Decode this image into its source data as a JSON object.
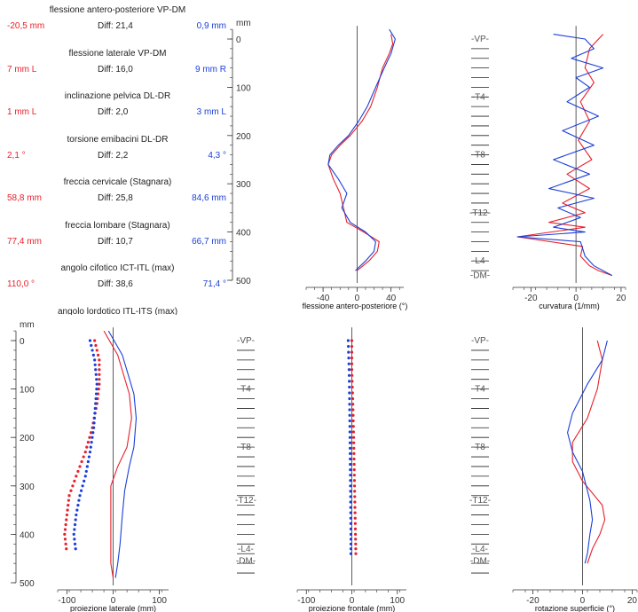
{
  "stats": [
    {
      "title": "flessione antero-posteriore VP-DM",
      "left": "-20,5 mm",
      "diff": "Diff: 21,4",
      "right": "0,9 mm"
    },
    {
      "title": "flessione laterale VP-DM",
      "left": "7 mm  L",
      "diff": "Diff: 16,0",
      "right": "9 mm  R"
    },
    {
      "title": "inclinazione pelvica DL-DR",
      "left": "1 mm  L",
      "diff": "Diff: 2,0",
      "right": "3 mm  L"
    },
    {
      "title": "torsione emibacini DL-DR",
      "left": "2,1 °",
      "diff": "Diff: 2,2",
      "right": "4,3 °"
    },
    {
      "title": "freccia cervicale (Stagnara)",
      "left": "58,8 mm",
      "diff": "Diff: 25,8",
      "right": "84,6 mm"
    },
    {
      "title": "freccia lombare (Stagnara)",
      "left": "77,4 mm",
      "diff": "Diff: 10,7",
      "right": "66,7 mm"
    },
    {
      "title": "angolo cifotico ICT-ITL (max)",
      "left": "110,0 °",
      "diff": "Diff: 38,6",
      "right": "71,4 °"
    },
    {
      "title": "angolo lordotico ITL-ITS (max)",
      "left": "",
      "diff": "",
      "right": ""
    }
  ],
  "colors": {
    "red": "#e8202a",
    "blue": "#1a3fd8",
    "axis": "#333333",
    "grid": "#222222",
    "labels": "#555555"
  },
  "chart_data": [
    {
      "type": "line",
      "xlabel": "flessione antero-posteriore (°)",
      "ylabel": "mm",
      "xlim": [
        -60,
        55
      ],
      "ylim": [
        -20,
        500
      ],
      "xticks": [
        -40,
        0,
        40
      ],
      "yticks": [
        0,
        100,
        200,
        300,
        400,
        500
      ],
      "y_tick_labels": true,
      "series": [
        {
          "color": "red",
          "points": [
            [
              40,
              -10
            ],
            [
              42,
              10
            ],
            [
              38,
              30
            ],
            [
              30,
              60
            ],
            [
              24,
              100
            ],
            [
              16,
              140
            ],
            [
              6,
              170
            ],
            [
              -8,
              200
            ],
            [
              -20,
              220
            ],
            [
              -30,
              240
            ],
            [
              -34,
              260
            ],
            [
              -28,
              290
            ],
            [
              -20,
              320
            ],
            [
              -16,
              350
            ],
            [
              -12,
              380
            ],
            [
              8,
              400
            ],
            [
              26,
              420
            ],
            [
              24,
              440
            ],
            [
              14,
              460
            ],
            [
              0,
              480
            ]
          ]
        },
        {
          "color": "blue",
          "points": [
            [
              38,
              -20
            ],
            [
              45,
              0
            ],
            [
              40,
              30
            ],
            [
              32,
              60
            ],
            [
              22,
              100
            ],
            [
              12,
              140
            ],
            [
              2,
              170
            ],
            [
              -10,
              200
            ],
            [
              -22,
              220
            ],
            [
              -32,
              240
            ],
            [
              -34,
              260
            ],
            [
              -22,
              290
            ],
            [
              -12,
              320
            ],
            [
              -18,
              350
            ],
            [
              -8,
              380
            ],
            [
              10,
              400
            ],
            [
              22,
              420
            ],
            [
              20,
              440
            ],
            [
              10,
              460
            ],
            [
              -2,
              480
            ]
          ]
        }
      ]
    },
    {
      "type": "line",
      "xlabel": "curvatura (1/mm)",
      "xlim": [
        -28,
        22
      ],
      "ylim": [
        -20,
        500
      ],
      "xticks": [
        -20,
        0,
        20
      ],
      "yticks": [],
      "y_tick_labels": false,
      "vertebra_labels": [
        {
          "y": 0,
          "label": "-VP-"
        },
        {
          "y": 120,
          "label": "-T4-"
        },
        {
          "y": 240,
          "label": "-T8-"
        },
        {
          "y": 360,
          "label": "-T12-"
        },
        {
          "y": 460,
          "label": "-L4-"
        },
        {
          "y": 490,
          "label": "-DM-"
        }
      ],
      "series": [
        {
          "color": "red",
          "points": [
            [
              12,
              -10
            ],
            [
              6,
              20
            ],
            [
              4,
              60
            ],
            [
              8,
              90
            ],
            [
              2,
              130
            ],
            [
              6,
              170
            ],
            [
              1,
              210
            ],
            [
              7,
              250
            ],
            [
              -4,
              280
            ],
            [
              6,
              310
            ],
            [
              -6,
              340
            ],
            [
              4,
              360
            ],
            [
              -12,
              380
            ],
            [
              4,
              390
            ],
            [
              -26,
              410
            ],
            [
              3,
              430
            ],
            [
              2,
              450
            ],
            [
              6,
              470
            ],
            [
              10,
              480
            ],
            [
              16,
              490
            ]
          ]
        },
        {
          "color": "blue",
          "points": [
            [
              -10,
              -10
            ],
            [
              4,
              0
            ],
            [
              8,
              20
            ],
            [
              -2,
              40
            ],
            [
              12,
              60
            ],
            [
              0,
              80
            ],
            [
              6,
              100
            ],
            [
              -4,
              130
            ],
            [
              10,
              160
            ],
            [
              -6,
              190
            ],
            [
              8,
              220
            ],
            [
              -10,
              250
            ],
            [
              6,
              280
            ],
            [
              -12,
              310
            ],
            [
              8,
              330
            ],
            [
              -8,
              350
            ],
            [
              2,
              370
            ],
            [
              -10,
              390
            ],
            [
              4,
              400
            ],
            [
              -26,
              410
            ],
            [
              2,
              420
            ],
            [
              4,
              450
            ],
            [
              8,
              470
            ],
            [
              16,
              490
            ]
          ]
        }
      ]
    },
    {
      "type": "line",
      "xlabel": "proiezione laterale (mm)",
      "ylabel": "mm",
      "xlim": [
        -120,
        120
      ],
      "ylim": [
        -20,
        500
      ],
      "xticks": [
        -100,
        0,
        100
      ],
      "yticks": [
        0,
        100,
        200,
        300,
        400,
        500
      ],
      "y_tick_labels": true,
      "series": [
        {
          "color": "red",
          "points": [
            [
              -20,
              -20
            ],
            [
              10,
              30
            ],
            [
              35,
              110
            ],
            [
              40,
              160
            ],
            [
              30,
              220
            ],
            [
              10,
              260
            ],
            [
              -5,
              300
            ],
            [
              -5,
              360
            ],
            [
              -5,
              420
            ],
            [
              -5,
              460
            ],
            [
              0,
              490
            ]
          ]
        },
        {
          "color": "blue",
          "points": [
            [
              -10,
              -20
            ],
            [
              20,
              30
            ],
            [
              45,
              110
            ],
            [
              50,
              160
            ],
            [
              45,
              220
            ],
            [
              35,
              260
            ],
            [
              25,
              310
            ],
            [
              20,
              360
            ],
            [
              15,
              420
            ],
            [
              10,
              460
            ],
            [
              5,
              490
            ]
          ]
        },
        {
          "color": "red",
          "dotted": true,
          "points": [
            [
              -40,
              0
            ],
            [
              -30,
              40
            ],
            [
              -30,
              90
            ],
            [
              -35,
              130
            ],
            [
              -45,
              180
            ],
            [
              -60,
              230
            ],
            [
              -80,
              280
            ],
            [
              -95,
              320
            ],
            [
              -100,
              360
            ],
            [
              -105,
              400
            ],
            [
              -100,
              440
            ]
          ]
        },
        {
          "color": "blue",
          "dotted": true,
          "points": [
            [
              -50,
              0
            ],
            [
              -40,
              40
            ],
            [
              -35,
              90
            ],
            [
              -38,
              130
            ],
            [
              -42,
              180
            ],
            [
              -50,
              230
            ],
            [
              -60,
              280
            ],
            [
              -72,
              320
            ],
            [
              -80,
              360
            ],
            [
              -85,
              400
            ],
            [
              -80,
              440
            ]
          ]
        }
      ]
    },
    {
      "type": "line",
      "xlabel": "proiezione frontale (mm)",
      "xlim": [
        -120,
        120
      ],
      "ylim": [
        -20,
        500
      ],
      "xticks": [
        -100,
        0,
        100
      ],
      "yticks": [],
      "y_tick_labels": false,
      "vertebra_labels": [
        {
          "y": 0,
          "label": "-VP-"
        },
        {
          "y": 100,
          "label": "-T4-"
        },
        {
          "y": 220,
          "label": "-T8-"
        },
        {
          "y": 330,
          "label": "-T12-"
        },
        {
          "y": 430,
          "label": "-L4-"
        },
        {
          "y": 455,
          "label": "-DM-"
        }
      ],
      "series": [
        {
          "color": "red",
          "dotted": true,
          "points": [
            [
              0,
              0
            ],
            [
              0,
              60
            ],
            [
              2,
              120
            ],
            [
              4,
              200
            ],
            [
              6,
              300
            ],
            [
              8,
              400
            ],
            [
              9,
              450
            ]
          ]
        },
        {
          "color": "blue",
          "dotted": true,
          "points": [
            [
              -8,
              0
            ],
            [
              -6,
              60
            ],
            [
              -5,
              120
            ],
            [
              -4,
              200
            ],
            [
              -3,
              300
            ],
            [
              -2,
              400
            ],
            [
              -2,
              450
            ]
          ]
        }
      ]
    },
    {
      "type": "line",
      "xlabel": "rotazione superficie (°)",
      "xlim": [
        -28,
        22
      ],
      "ylim": [
        -20,
        500
      ],
      "xticks": [
        -20,
        0,
        20
      ],
      "yticks": [],
      "y_tick_labels": false,
      "vertebra_labels": [
        {
          "y": 0,
          "label": "-VP-"
        },
        {
          "y": 100,
          "label": "-T4-"
        },
        {
          "y": 220,
          "label": "-T8-"
        },
        {
          "y": 330,
          "label": "-T12-"
        },
        {
          "y": 430,
          "label": "-L4-"
        },
        {
          "y": 455,
          "label": "-DM-"
        }
      ],
      "series": [
        {
          "color": "red",
          "points": [
            [
              6,
              0
            ],
            [
              8,
              40
            ],
            [
              6,
              100
            ],
            [
              2,
              160
            ],
            [
              -4,
              210
            ],
            [
              -4,
              250
            ],
            [
              0,
              290
            ],
            [
              8,
              340
            ],
            [
              9,
              370
            ],
            [
              7,
              400
            ],
            [
              4,
              430
            ],
            [
              2,
              460
            ]
          ]
        },
        {
          "color": "blue",
          "points": [
            [
              10,
              0
            ],
            [
              8,
              40
            ],
            [
              2,
              90
            ],
            [
              -4,
              150
            ],
            [
              -6,
              190
            ],
            [
              -4,
              230
            ],
            [
              0,
              270
            ],
            [
              3,
              330
            ],
            [
              4,
              370
            ],
            [
              3,
              400
            ],
            [
              2,
              440
            ],
            [
              1,
              460
            ]
          ]
        }
      ]
    }
  ]
}
